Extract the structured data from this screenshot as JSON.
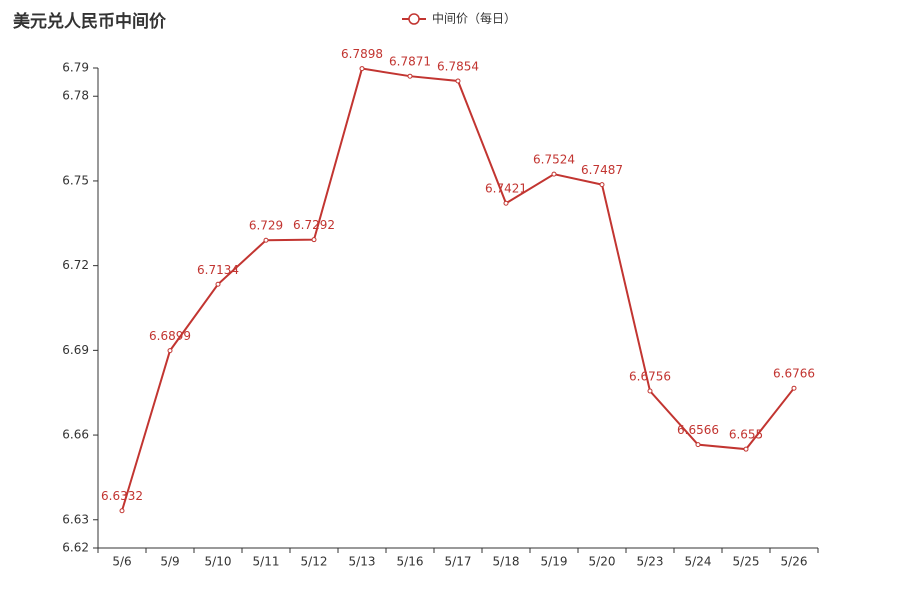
{
  "chart_data": {
    "type": "line",
    "title": "美元兑人民币中间价",
    "categories": [
      "5/6",
      "5/9",
      "5/10",
      "5/11",
      "5/12",
      "5/13",
      "5/16",
      "5/17",
      "5/18",
      "5/19",
      "5/20",
      "5/23",
      "5/24",
      "5/25",
      "5/26"
    ],
    "series": [
      {
        "name": "中间价（每日）",
        "color": "#c23531",
        "values": [
          6.6332,
          6.6899,
          6.7134,
          6.729,
          6.7292,
          6.7898,
          6.7871,
          6.7854,
          6.7421,
          6.7524,
          6.7487,
          6.6756,
          6.6566,
          6.655,
          6.6766
        ]
      }
    ],
    "ylim": [
      6.62,
      6.79
    ],
    "yticks": [
      6.62,
      6.63,
      6.66,
      6.69,
      6.72,
      6.75,
      6.78,
      6.79
    ],
    "legend": "top",
    "grid": false
  }
}
